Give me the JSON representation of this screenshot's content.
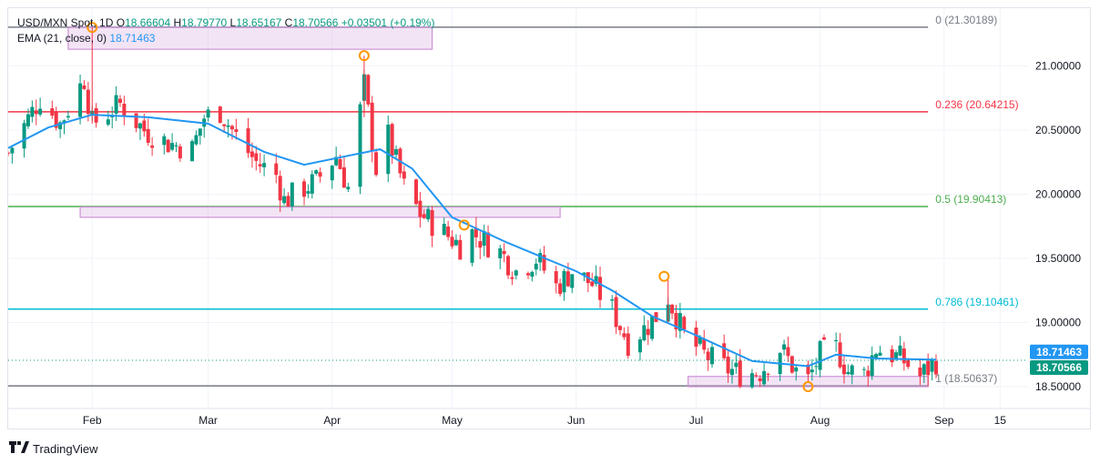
{
  "header": {
    "symbol": "USD/MXN Spot, 1D",
    "open_label": "O",
    "open": "18.66604",
    "high_label": "H",
    "high": "18.79770",
    "low_label": "L",
    "low": "18.65167",
    "close_label": "C",
    "close": "18.70566",
    "change": "+0.03501 (+0.19%)"
  },
  "indicator": {
    "label": "EMA (21, close, 0)",
    "value": "18.71463"
  },
  "brand": {
    "name": "TradingView"
  },
  "colors": {
    "up": "#089981",
    "down": "#f23645",
    "ema": "#2196f3",
    "fib_0": "#787b86",
    "fib_0236": "#f23645",
    "fib_05": "#4caf50",
    "fib_0786": "#00bcd4",
    "fib_1": "#787b86",
    "zone": "#ce93d8",
    "marker": "#ff9800"
  },
  "chart_data": {
    "type": "candlestick",
    "y_axis": {
      "range": [
        18.33,
        21.45
      ],
      "ticks": [
        "18.50000",
        "19.00000",
        "19.50000",
        "20.00000",
        "20.50000",
        "21.00000"
      ]
    },
    "x_axis": {
      "range": [
        "2024-01-11",
        "2024-09-22"
      ],
      "ticks": [
        {
          "label": "Feb",
          "date": "2024-02-01"
        },
        {
          "label": "Mar",
          "date": "2024-03-01"
        },
        {
          "label": "Apr",
          "date": "2024-04-01"
        },
        {
          "label": "May",
          "date": "2024-05-01"
        },
        {
          "label": "Jun",
          "date": "2024-06-01"
        },
        {
          "label": "Jul",
          "date": "2024-07-01"
        },
        {
          "label": "Aug",
          "date": "2024-08-01"
        },
        {
          "label": "Sep",
          "date": "2024-09-01"
        },
        {
          "label": "15",
          "date": "2024-09-15"
        }
      ]
    },
    "fib_levels": [
      {
        "label": "0 (21.30189)",
        "value": 21.30189,
        "color": "#787b86"
      },
      {
        "label": "0.236 (20.64215)",
        "value": 20.64215,
        "color": "#f23645"
      },
      {
        "label": "0.5 (19.90413)",
        "value": 19.90413,
        "color": "#4caf50"
      },
      {
        "label": "0.786 (19.10461)",
        "value": 19.10461,
        "color": "#00bcd4"
      },
      {
        "label": "1 (18.50637)",
        "value": 18.50637,
        "color": "#787b86"
      }
    ],
    "price_tags": [
      {
        "text": "18.71463",
        "value": 18.71463,
        "color": "#2196f3"
      },
      {
        "text": "18.70566",
        "value": 18.70566,
        "color": "#089981"
      }
    ],
    "zones": [
      {
        "from": "2024-01-26",
        "to": "2024-04-26",
        "top": 21.3,
        "bottom": 21.13
      },
      {
        "from": "2024-01-29",
        "to": "2024-05-28",
        "top": 19.9,
        "bottom": 19.82
      },
      {
        "from": "2024-06-29",
        "to": "2024-08-28",
        "top": 18.58,
        "bottom": 18.5
      }
    ],
    "markers": [
      {
        "date": "2024-02-01",
        "price": 21.3
      },
      {
        "date": "2024-04-09",
        "price": 21.08
      },
      {
        "date": "2024-05-04",
        "price": 19.76
      },
      {
        "date": "2024-06-23",
        "price": 19.36
      },
      {
        "date": "2024-07-29",
        "price": 18.5
      }
    ],
    "close_path": [
      [
        "2024-01-11",
        20.32
      ],
      [
        "2024-01-19",
        20.75
      ],
      [
        "2024-01-24",
        20.55
      ],
      [
        "2024-01-30",
        20.9
      ],
      [
        "2024-02-01",
        20.55
      ],
      [
        "2024-02-08",
        20.7
      ],
      [
        "2024-02-14",
        20.5
      ],
      [
        "2024-02-20",
        20.4
      ],
      [
        "2024-02-26",
        20.35
      ],
      [
        "2024-02-29",
        20.6
      ],
      [
        "2024-03-04",
        20.65
      ],
      [
        "2024-03-08",
        20.45
      ],
      [
        "2024-03-13",
        20.25
      ],
      [
        "2024-03-18",
        20.15
      ],
      [
        "2024-03-20",
        19.95
      ],
      [
        "2024-03-25",
        20.05
      ],
      [
        "2024-03-28",
        20.1
      ],
      [
        "2024-04-02",
        20.3
      ],
      [
        "2024-04-05",
        20.05
      ],
      [
        "2024-04-09",
        20.85
      ],
      [
        "2024-04-12",
        20.2
      ],
      [
        "2024-04-15",
        20.45
      ],
      [
        "2024-04-19",
        20.05
      ],
      [
        "2024-04-23",
        19.85
      ],
      [
        "2024-04-29",
        19.7
      ],
      [
        "2024-05-03",
        19.6
      ],
      [
        "2024-05-06",
        19.7
      ],
      [
        "2024-05-13",
        19.55
      ],
      [
        "2024-05-17",
        19.4
      ],
      [
        "2024-05-22",
        19.5
      ],
      [
        "2024-05-27",
        19.28
      ],
      [
        "2024-05-31",
        19.4
      ],
      [
        "2024-06-05",
        19.3
      ],
      [
        "2024-06-10",
        19.1
      ],
      [
        "2024-06-14",
        18.85
      ],
      [
        "2024-06-18",
        18.95
      ],
      [
        "2024-06-21",
        19.05
      ],
      [
        "2024-06-24",
        19.2
      ],
      [
        "2024-06-28",
        18.9
      ],
      [
        "2024-07-03",
        18.75
      ],
      [
        "2024-07-08",
        18.65
      ],
      [
        "2024-07-12",
        18.6
      ],
      [
        "2024-07-17",
        18.62
      ],
      [
        "2024-07-22",
        18.8
      ],
      [
        "2024-07-26",
        18.62
      ],
      [
        "2024-07-29",
        18.55
      ],
      [
        "2024-08-01",
        18.75
      ],
      [
        "2024-08-05",
        18.8
      ],
      [
        "2024-08-08",
        18.62
      ],
      [
        "2024-08-12",
        18.6
      ],
      [
        "2024-08-15",
        18.8
      ],
      [
        "2024-08-19",
        18.75
      ],
      [
        "2024-08-22",
        18.7
      ],
      [
        "2024-08-26",
        18.58
      ],
      [
        "2024-08-30",
        18.7
      ]
    ],
    "ema_path": [
      [
        "2024-01-11",
        20.36
      ],
      [
        "2024-01-21",
        20.52
      ],
      [
        "2024-02-01",
        20.62
      ],
      [
        "2024-02-15",
        20.6
      ],
      [
        "2024-03-01",
        20.55
      ],
      [
        "2024-03-15",
        20.33
      ],
      [
        "2024-03-25",
        20.23
      ],
      [
        "2024-04-05",
        20.3
      ],
      [
        "2024-04-13",
        20.35
      ],
      [
        "2024-04-21",
        20.2
      ],
      [
        "2024-05-01",
        19.82
      ],
      [
        "2024-05-15",
        19.62
      ],
      [
        "2024-06-01",
        19.4
      ],
      [
        "2024-06-10",
        19.25
      ],
      [
        "2024-06-20",
        19.05
      ],
      [
        "2024-07-01",
        18.9
      ],
      [
        "2024-07-15",
        18.7
      ],
      [
        "2024-07-29",
        18.66
      ],
      [
        "2024-08-05",
        18.75
      ],
      [
        "2024-08-15",
        18.72
      ],
      [
        "2024-08-30",
        18.71
      ]
    ]
  }
}
